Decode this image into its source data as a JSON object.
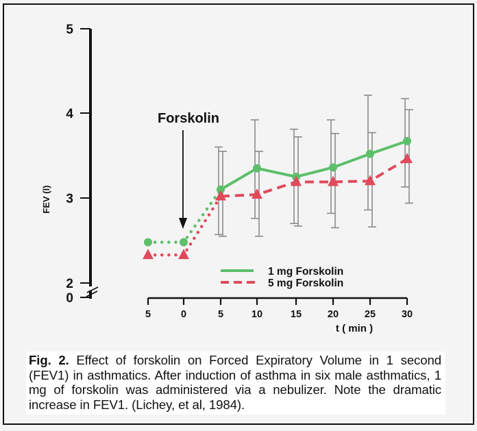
{
  "chart_data": {
    "type": "line",
    "title": "",
    "xlabel": "t ( min )",
    "ylabel": "FEV (l)",
    "x_ticks": [
      "5",
      "0",
      "5",
      "10",
      "15",
      "20",
      "25",
      "30"
    ],
    "x": [
      -5,
      0,
      5,
      10,
      15,
      20,
      25,
      30
    ],
    "y_ticks": [
      "0",
      "2",
      "3",
      "4",
      "5"
    ],
    "ylim": [
      2,
      5
    ],
    "y_axis_break": true,
    "grid": false,
    "legend_position": "lower-center",
    "annotations": [
      {
        "text": "Forskolin",
        "type": "arrow",
        "x": 0
      }
    ],
    "series": [
      {
        "name": "1 mg Forskolin",
        "color": "#5cbf6a",
        "marker": "circle",
        "line_style": "solid (dotted for baseline segment -5 to 5)",
        "values": [
          2.48,
          2.48,
          3.1,
          3.35,
          3.25,
          3.36,
          3.52,
          3.67
        ],
        "error_upper": [
          null,
          null,
          3.6,
          3.92,
          3.81,
          3.92,
          4.21,
          4.17
        ],
        "error_lower": [
          null,
          null,
          2.57,
          2.76,
          2.7,
          2.82,
          2.86,
          3.13
        ]
      },
      {
        "name": "5 mg Forskolin",
        "color": "#e04a5b",
        "marker": "triangle",
        "line_style": "dashed (dotted for baseline segment -5 to 5)",
        "values": [
          2.33,
          2.33,
          3.02,
          3.04,
          3.19,
          3.19,
          3.2,
          3.46
        ],
        "error_upper": [
          null,
          null,
          3.55,
          3.55,
          3.72,
          3.76,
          3.77,
          4.04
        ],
        "error_lower": [
          null,
          null,
          2.55,
          2.55,
          2.67,
          2.65,
          2.66,
          2.94
        ]
      }
    ]
  },
  "figure": {
    "annotation_label": "Forskolin",
    "ylabel": "FEV (l)",
    "xlabel": "t ( min )",
    "legend": [
      {
        "label": "1 mg Forskolin"
      },
      {
        "label": "5 mg Forskolin"
      }
    ]
  },
  "caption": {
    "label": "Fig. 2.",
    "text": " Effect of forskolin on Forced Expiratory Volume in 1 second (FEV1) in asthmatics.  After induction of asthma in six male asthmatics, 1 mg of forskolin was administered via a nebulizer. Note the dramatic increase in FEV1.  (Lichey, et al, 1984)."
  }
}
